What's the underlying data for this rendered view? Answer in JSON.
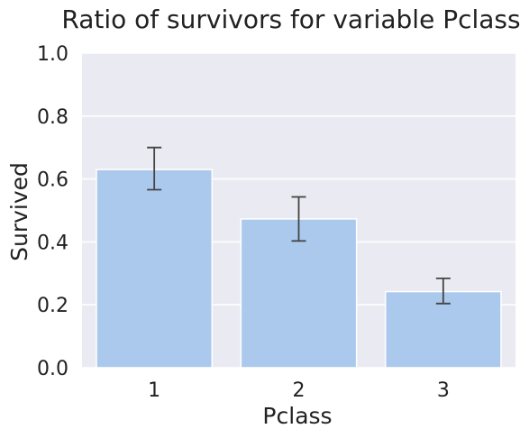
{
  "chart_data": {
    "type": "bar",
    "title": "Ratio of survivors for variable Pclass",
    "xlabel": "Pclass",
    "ylabel": "Survived",
    "categories": [
      "1",
      "2",
      "3"
    ],
    "values": [
      0.63,
      0.473,
      0.242
    ],
    "error_bars": [
      [
        0.566,
        0.7
      ],
      [
        0.403,
        0.543
      ],
      [
        0.204,
        0.284
      ]
    ],
    "ylim": [
      0,
      1
    ],
    "yticks": [
      "0.0",
      "0.2",
      "0.4",
      "0.6",
      "0.8",
      "1.0"
    ],
    "grid": true,
    "colors": {
      "bar": "#abc9ed",
      "plot_background": "#eaeaf2",
      "grid": "#ffffff",
      "error_bar": "#444444"
    }
  }
}
